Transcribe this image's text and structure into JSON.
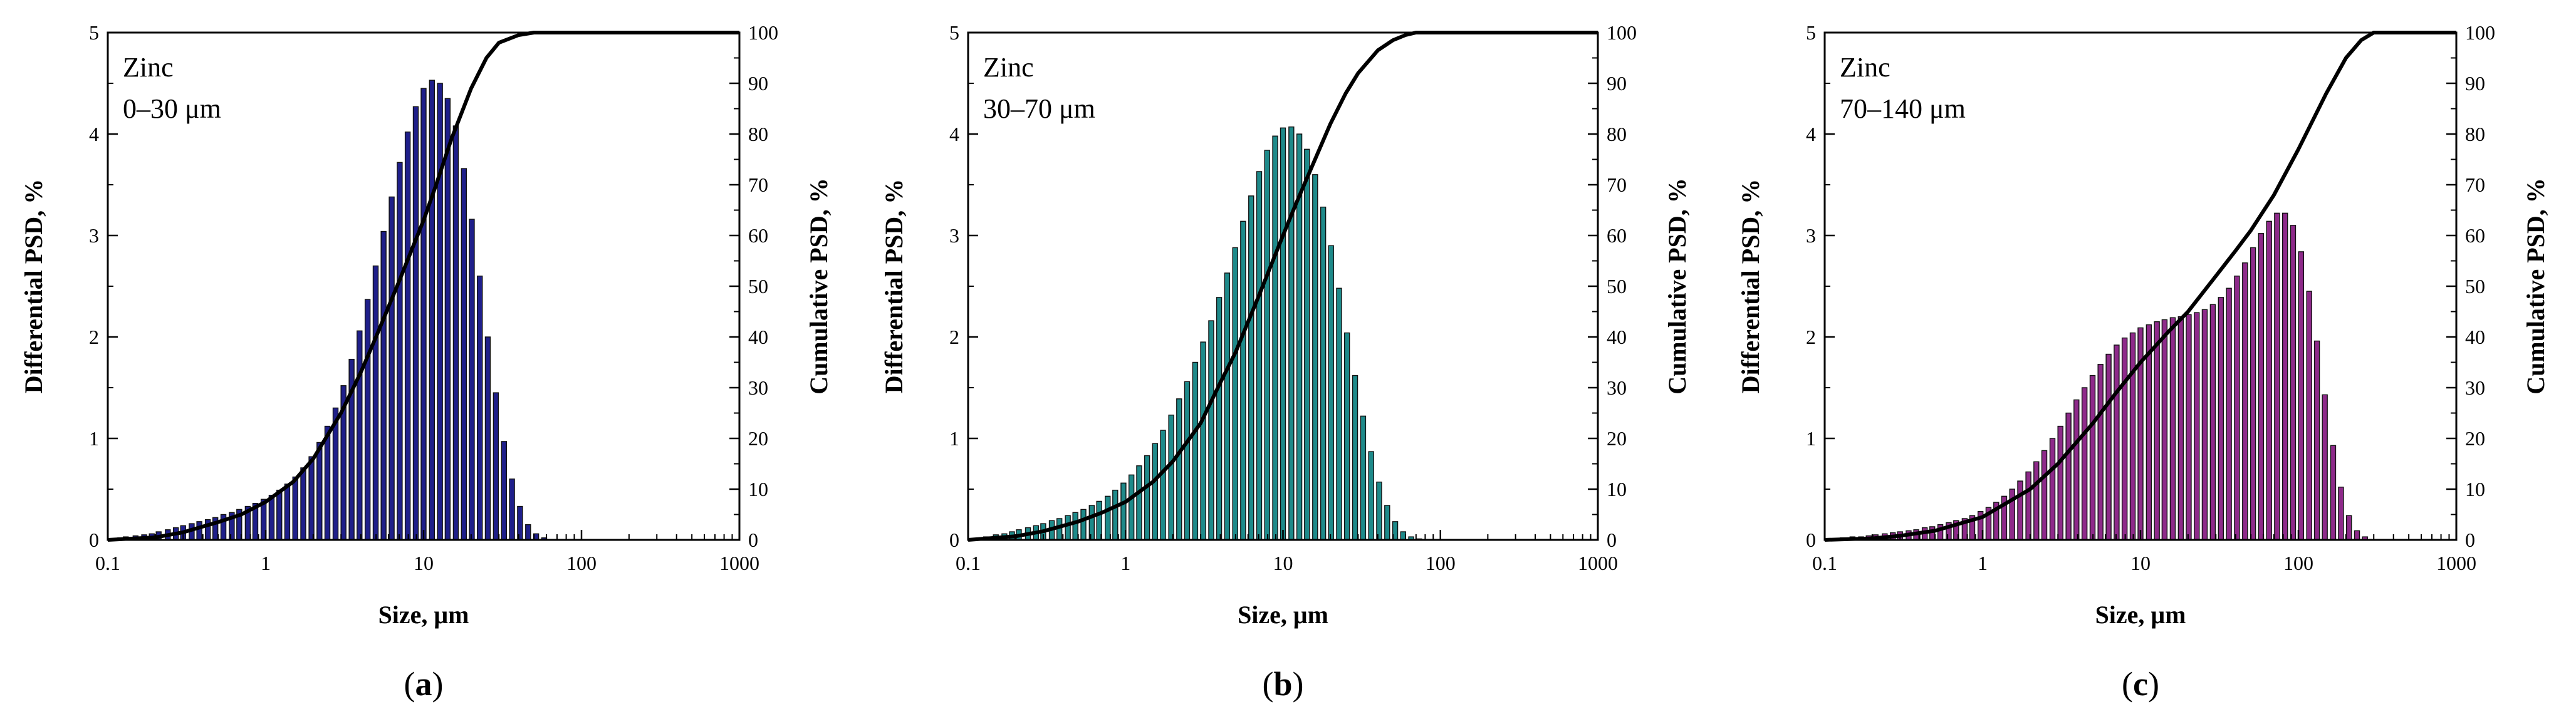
{
  "chart_data": [
    {
      "type": "bar",
      "panel_label": "a",
      "annotation": [
        "Zinc",
        "0–30 μm"
      ],
      "xlabel": "Size, μm",
      "ylabel": "Differential PSD, %",
      "y2label": "Cumulative PSD, %",
      "xscale": "log",
      "xlim": [
        0.1,
        1000
      ],
      "ylim": [
        0,
        5
      ],
      "y2lim": [
        0,
        100
      ],
      "x_ticks": [
        "0.1",
        "1",
        "10",
        "100",
        "1000"
      ],
      "y_ticks": [
        "0",
        "1",
        "2",
        "3",
        "4",
        "5"
      ],
      "y2_ticks": [
        "0",
        "10",
        "20",
        "30",
        "40",
        "50",
        "60",
        "70",
        "80",
        "90",
        "100"
      ],
      "bar_color": "#1f1f8a",
      "bar_x": [
        0.12,
        0.13,
        0.15,
        0.17,
        0.19,
        0.21,
        0.24,
        0.27,
        0.3,
        0.34,
        0.38,
        0.43,
        0.48,
        0.54,
        0.61,
        0.68,
        0.77,
        0.86,
        0.97,
        1.09,
        1.22,
        1.37,
        1.54,
        1.73,
        1.95,
        2.19,
        2.46,
        2.77,
        3.11,
        3.5,
        3.93,
        4.42,
        4.97,
        5.58,
        6.28,
        7.06,
        7.93,
        8.92,
        10.0,
        11.3,
        12.7,
        14.2,
        16.0,
        18.0,
        20.2,
        22.7,
        25.5,
        28.7,
        32.3,
        36.3,
        40.8,
        45.9,
        51.6,
        58.0,
        65.2
      ],
      "bar_values": [
        0.02,
        0.03,
        0.04,
        0.05,
        0.06,
        0.08,
        0.1,
        0.12,
        0.14,
        0.16,
        0.18,
        0.2,
        0.22,
        0.25,
        0.27,
        0.3,
        0.33,
        0.36,
        0.4,
        0.44,
        0.49,
        0.55,
        0.62,
        0.71,
        0.82,
        0.96,
        1.12,
        1.3,
        1.52,
        1.78,
        2.06,
        2.37,
        2.7,
        3.04,
        3.38,
        3.72,
        4.02,
        4.27,
        4.45,
        4.53,
        4.5,
        4.35,
        4.08,
        3.66,
        3.16,
        2.6,
        2.0,
        1.45,
        0.97,
        0.6,
        0.33,
        0.15,
        0.06,
        0.02,
        0.0
      ],
      "cumulative_x": [
        0.1,
        0.2,
        0.3,
        0.5,
        0.7,
        1.0,
        1.5,
        2.0,
        3.0,
        4.0,
        5.0,
        7.0,
        10.0,
        12.0,
        15.0,
        20.0,
        25.0,
        30.0,
        40.0,
        50.0,
        60.0,
        70.0,
        100.0,
        1000.0
      ],
      "cumulative_values": [
        0,
        0.5,
        1.5,
        3.5,
        5,
        7.5,
        11.5,
        16,
        25,
        33,
        40,
        51,
        63,
        70,
        79,
        89,
        95,
        98,
        99.5,
        100,
        100,
        100,
        100,
        100
      ]
    },
    {
      "type": "bar",
      "panel_label": "b",
      "annotation": [
        "Zinc",
        "30–70 μm"
      ],
      "xlabel": "Size, μm",
      "ylabel": "Differential PSD, %",
      "y2label": "Cumulative PSD, %",
      "xscale": "log",
      "xlim": [
        0.1,
        1000
      ],
      "ylim": [
        0,
        5
      ],
      "y2lim": [
        0,
        100
      ],
      "x_ticks": [
        "0.1",
        "1",
        "10",
        "100",
        "1000"
      ],
      "y_ticks": [
        "0",
        "1",
        "2",
        "3",
        "4",
        "5"
      ],
      "y2_ticks": [
        "0",
        "10",
        "20",
        "30",
        "40",
        "50",
        "60",
        "70",
        "80",
        "90",
        "100"
      ],
      "bar_color": "#1e8a8a",
      "bar_x": [
        0.12,
        0.13,
        0.15,
        0.17,
        0.19,
        0.21,
        0.24,
        0.27,
        0.3,
        0.34,
        0.38,
        0.43,
        0.48,
        0.54,
        0.61,
        0.68,
        0.77,
        0.86,
        0.97,
        1.09,
        1.22,
        1.37,
        1.54,
        1.73,
        1.95,
        2.19,
        2.46,
        2.77,
        3.11,
        3.5,
        3.93,
        4.42,
        4.97,
        5.58,
        6.28,
        7.06,
        7.93,
        8.92,
        10.0,
        11.3,
        12.7,
        14.2,
        16.0,
        18.0,
        20.2,
        22.7,
        25.5,
        28.7,
        32.3,
        36.3,
        40.8,
        45.9,
        51.6,
        58.0,
        65.2,
        73.2,
        82.3
      ],
      "bar_values": [
        0.02,
        0.03,
        0.05,
        0.06,
        0.08,
        0.1,
        0.12,
        0.14,
        0.16,
        0.19,
        0.21,
        0.24,
        0.27,
        0.3,
        0.34,
        0.38,
        0.43,
        0.49,
        0.56,
        0.64,
        0.73,
        0.83,
        0.95,
        1.08,
        1.23,
        1.39,
        1.56,
        1.75,
        1.95,
        2.16,
        2.39,
        2.63,
        2.88,
        3.14,
        3.39,
        3.63,
        3.84,
        3.98,
        4.06,
        4.07,
        4.0,
        3.85,
        3.6,
        3.28,
        2.9,
        2.48,
        2.04,
        1.62,
        1.22,
        0.87,
        0.57,
        0.34,
        0.18,
        0.08,
        0.03,
        0.01,
        0.0
      ],
      "cumulative_x": [
        0.1,
        0.2,
        0.3,
        0.5,
        0.7,
        1.0,
        1.5,
        2.0,
        3.0,
        4.0,
        5.0,
        7.0,
        10.0,
        12.0,
        15.0,
        20.0,
        25.0,
        30.0,
        40.0,
        50.0,
        60.0,
        70.0,
        80.0,
        100.0,
        1000.0
      ],
      "cumulative_values": [
        0,
        0.7,
        1.7,
        3.6,
        5.3,
        7.5,
        11.5,
        15.5,
        23,
        31,
        37,
        48,
        60,
        66,
        73,
        82,
        88,
        92,
        96.5,
        98.5,
        99.5,
        100,
        100,
        100,
        100
      ]
    },
    {
      "type": "bar",
      "panel_label": "c",
      "annotation": [
        "Zinc",
        "70–140 μm"
      ],
      "xlabel": "Size, μm",
      "ylabel": "Differential PSD, %",
      "y2label": "Cumulative PSD, %",
      "xscale": "log",
      "xlim": [
        0.1,
        1000
      ],
      "ylim": [
        0,
        5
      ],
      "y2lim": [
        0,
        100
      ],
      "x_ticks": [
        "0.1",
        "1",
        "10",
        "100",
        "1000"
      ],
      "y_ticks": [
        "0",
        "1",
        "2",
        "3",
        "4",
        "5"
      ],
      "y2_ticks": [
        "0",
        "10",
        "20",
        "30",
        "40",
        "50",
        "60",
        "70",
        "80",
        "90",
        "100"
      ],
      "bar_color": "#8e2a8a",
      "bar_x": [
        0.12,
        0.13,
        0.15,
        0.17,
        0.19,
        0.21,
        0.24,
        0.27,
        0.3,
        0.34,
        0.38,
        0.43,
        0.48,
        0.54,
        0.61,
        0.68,
        0.77,
        0.86,
        0.97,
        1.09,
        1.22,
        1.37,
        1.54,
        1.73,
        1.95,
        2.19,
        2.46,
        2.77,
        3.11,
        3.5,
        3.93,
        4.42,
        4.97,
        5.58,
        6.28,
        7.06,
        7.93,
        8.92,
        10.0,
        11.3,
        12.7,
        14.2,
        16.0,
        18.0,
        20.2,
        22.7,
        25.5,
        28.7,
        32.3,
        36.3,
        40.8,
        45.9,
        51.6,
        58.0,
        65.2,
        73.2,
        82.3,
        92.5,
        104,
        117,
        131,
        147,
        166,
        186,
        209,
        235,
        264
      ],
      "bar_values": [
        0.01,
        0.02,
        0.03,
        0.03,
        0.04,
        0.05,
        0.06,
        0.07,
        0.08,
        0.09,
        0.1,
        0.12,
        0.13,
        0.15,
        0.17,
        0.19,
        0.21,
        0.24,
        0.28,
        0.32,
        0.37,
        0.43,
        0.5,
        0.58,
        0.67,
        0.77,
        0.88,
        1.0,
        1.12,
        1.25,
        1.38,
        1.5,
        1.62,
        1.73,
        1.83,
        1.92,
        1.99,
        2.04,
        2.09,
        2.12,
        2.15,
        2.17,
        2.19,
        2.2,
        2.22,
        2.24,
        2.27,
        2.32,
        2.39,
        2.48,
        2.6,
        2.73,
        2.88,
        3.02,
        3.14,
        3.22,
        3.22,
        3.1,
        2.84,
        2.45,
        1.96,
        1.43,
        0.93,
        0.52,
        0.24,
        0.09,
        0.03
      ],
      "cumulative_x": [
        0.1,
        0.2,
        0.3,
        0.5,
        1.0,
        2.0,
        3.0,
        5.0,
        7.0,
        10.0,
        15.0,
        20.0,
        30.0,
        40.0,
        50.0,
        70.0,
        100.0,
        150.0,
        200.0,
        250.0,
        300.0,
        1000.0
      ],
      "cumulative_values": [
        0,
        0.3,
        0.8,
        1.8,
        4.5,
        10,
        15,
        23,
        29,
        35,
        41,
        45,
        52,
        57,
        61,
        68,
        77,
        88,
        95,
        98.5,
        100,
        100
      ]
    }
  ]
}
